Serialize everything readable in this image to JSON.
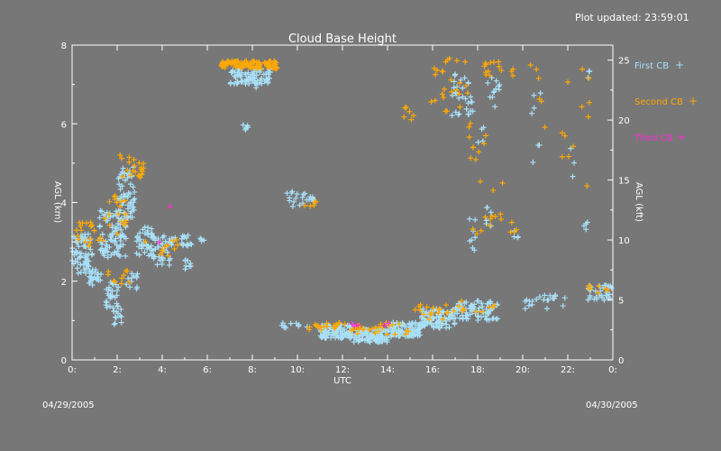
{
  "updated_text": "Plot updated: 23:59:01",
  "date_left": "04/29/2005",
  "date_right": "04/30/2005",
  "colors": {
    "background": "#777777",
    "axes": "#ffffff",
    "first_cb": "#a8e0f8",
    "second_cb": "#ffa800",
    "third_cb": "#ff2bd5"
  },
  "chart_data": {
    "type": "scatter",
    "title": "Cloud Base Height",
    "xlabel": "UTC",
    "ylabel": "AGL (km)",
    "ylabel_right": "AGL (kft)",
    "xlim": [
      0,
      24
    ],
    "ylim": [
      0,
      8
    ],
    "ylim_right": [
      0,
      26.25
    ],
    "x_ticks": [
      0,
      2,
      4,
      6,
      8,
      10,
      12,
      14,
      16,
      18,
      20,
      22,
      24
    ],
    "x_tick_labels": [
      "0:",
      "2:",
      "4:",
      "6:",
      "8:",
      "10:",
      "12:",
      "14:",
      "16:",
      "18:",
      "20:",
      "22:",
      "0:"
    ],
    "y_ticks": [
      0,
      2,
      4,
      6,
      8
    ],
    "y_tick_labels": [
      "0",
      "2",
      "4",
      "6",
      "8"
    ],
    "y_right_ticks": [
      0,
      5,
      10,
      15,
      20,
      25
    ],
    "y_right_tick_labels": [
      "0",
      "5",
      "10",
      "15",
      "20",
      "25"
    ],
    "legend_placement": "right",
    "series": [
      {
        "name": "First CB",
        "marker": "+",
        "clusters": [
          {
            "x": [
              0.0,
              0.9
            ],
            "y": [
              2.2,
              3.2
            ],
            "n": 70
          },
          {
            "x": [
              0.7,
              1.3
            ],
            "y": [
              1.9,
              2.3
            ],
            "n": 25
          },
          {
            "x": [
              1.2,
              2.4
            ],
            "y": [
              2.6,
              3.8
            ],
            "n": 90
          },
          {
            "x": [
              1.5,
              2.1
            ],
            "y": [
              1.3,
              2.0
            ],
            "n": 30
          },
          {
            "x": [
              1.8,
              2.2
            ],
            "y": [
              0.9,
              1.3
            ],
            "n": 12
          },
          {
            "x": [
              2.0,
              2.8
            ],
            "y": [
              3.6,
              4.9
            ],
            "n": 60
          },
          {
            "x": [
              2.4,
              2.9
            ],
            "y": [
              1.8,
              2.2
            ],
            "n": 12
          },
          {
            "x": [
              2.8,
              3.6
            ],
            "y": [
              2.6,
              3.4
            ],
            "n": 40
          },
          {
            "x": [
              3.6,
              4.4
            ],
            "y": [
              2.4,
              3.2
            ],
            "n": 35
          },
          {
            "x": [
              4.4,
              5.4
            ],
            "y": [
              2.9,
              3.2
            ],
            "n": 20
          },
          {
            "x": [
              5.0,
              5.3
            ],
            "y": [
              2.3,
              2.6
            ],
            "n": 8
          },
          {
            "x": [
              5.6,
              5.9
            ],
            "y": [
              3.0,
              3.1
            ],
            "n": 4
          },
          {
            "x": [
              7.0,
              8.8
            ],
            "y": [
              7.0,
              7.4
            ],
            "n": 70
          },
          {
            "x": [
              7.5,
              8.5
            ],
            "y": [
              6.9,
              7.2
            ],
            "n": 14
          },
          {
            "x": [
              7.4,
              8.0
            ],
            "y": [
              5.8,
              6.0
            ],
            "n": 6
          },
          {
            "x": [
              9.5,
              10.8
            ],
            "y": [
              3.9,
              4.3
            ],
            "n": 22
          },
          {
            "x": [
              9.3,
              11.0
            ],
            "y": [
              0.8,
              0.95
            ],
            "n": 10
          },
          {
            "x": [
              11.0,
              12.5
            ],
            "y": [
              0.55,
              0.9
            ],
            "n": 110
          },
          {
            "x": [
              12.5,
              14.0
            ],
            "y": [
              0.45,
              0.8
            ],
            "n": 120
          },
          {
            "x": [
              14.0,
              15.5
            ],
            "y": [
              0.6,
              0.95
            ],
            "n": 110
          },
          {
            "x": [
              15.5,
              17.0
            ],
            "y": [
              0.8,
              1.3
            ],
            "n": 100
          },
          {
            "x": [
              17.0,
              18.9
            ],
            "y": [
              1.0,
              1.5
            ],
            "n": 80
          },
          {
            "x": [
              20.0,
              21.9
            ],
            "y": [
              1.3,
              1.65
            ],
            "n": 22
          },
          {
            "x": [
              22.9,
              24.0
            ],
            "y": [
              1.5,
              1.9
            ],
            "n": 35
          },
          {
            "x": [
              16.8,
              17.8
            ],
            "y": [
              6.2,
              7.3
            ],
            "n": 30
          },
          {
            "x": [
              17.6,
              17.9
            ],
            "y": [
              2.7,
              3.6
            ],
            "n": 8
          },
          {
            "x": [
              18.0,
              18.3
            ],
            "y": [
              5.5,
              6.0
            ],
            "n": 4
          },
          {
            "x": [
              18.4,
              19.0
            ],
            "y": [
              6.4,
              7.2
            ],
            "n": 12
          },
          {
            "x": [
              18.3,
              18.6
            ],
            "y": [
              3.4,
              4.0
            ],
            "n": 6
          },
          {
            "x": [
              19.6,
              19.8
            ],
            "y": [
              3.1,
              3.3
            ],
            "n": 4
          },
          {
            "x": [
              20.4,
              20.8
            ],
            "y": [
              4.8,
              6.8
            ],
            "n": 7
          },
          {
            "x": [
              22.0,
              22.3
            ],
            "y": [
              4.5,
              5.5
            ],
            "n": 3
          },
          {
            "x": [
              22.7,
              22.9
            ],
            "y": [
              3.3,
              3.5
            ],
            "n": 4
          },
          {
            "x": [
              22.8,
              23.0
            ],
            "y": [
              7.1,
              7.4
            ],
            "n": 3
          }
        ]
      },
      {
        "name": "Second CB",
        "marker": "+",
        "clusters": [
          {
            "x": [
              0.1,
              1.5
            ],
            "y": [
              2.8,
              3.5
            ],
            "n": 20
          },
          {
            "x": [
              1.4,
              2.4
            ],
            "y": [
              3.2,
              4.2
            ],
            "n": 20
          },
          {
            "x": [
              2.1,
              3.2
            ],
            "y": [
              4.6,
              5.3
            ],
            "n": 22
          },
          {
            "x": [
              1.5,
              2.6
            ],
            "y": [
              1.9,
              2.3
            ],
            "n": 10
          },
          {
            "x": [
              3.2,
              4.8
            ],
            "y": [
              2.6,
              3.1
            ],
            "n": 12
          },
          {
            "x": [
              6.6,
              9.1
            ],
            "y": [
              7.4,
              7.6
            ],
            "n": 120
          },
          {
            "x": [
              9.8,
              11.0
            ],
            "y": [
              3.9,
              4.1
            ],
            "n": 5
          },
          {
            "x": [
              10.5,
              12.5
            ],
            "y": [
              0.75,
              0.95
            ],
            "n": 25
          },
          {
            "x": [
              12.5,
              15.0
            ],
            "y": [
              0.65,
              0.95
            ],
            "n": 25
          },
          {
            "x": [
              15.0,
              17.5
            ],
            "y": [
              1.0,
              1.4
            ],
            "n": 20
          },
          {
            "x": [
              17.0,
              18.8
            ],
            "y": [
              1.2,
              1.6
            ],
            "n": 8
          },
          {
            "x": [
              14.4,
              15.5
            ],
            "y": [
              6.1,
              6.5
            ],
            "n": 6
          },
          {
            "x": [
              15.5,
              17.6
            ],
            "y": [
              6.3,
              7.7
            ],
            "n": 25
          },
          {
            "x": [
              17.6,
              18.4
            ],
            "y": [
              2.9,
              6.2
            ],
            "n": 15
          },
          {
            "x": [
              18.3,
              19.7
            ],
            "y": [
              7.2,
              7.6
            ],
            "n": 15
          },
          {
            "x": [
              18.5,
              19.2
            ],
            "y": [
              3.4,
              4.5
            ],
            "n": 8
          },
          {
            "x": [
              19.4,
              19.8
            ],
            "y": [
              3.2,
              3.5
            ],
            "n": 4
          },
          {
            "x": [
              20.2,
              21.0
            ],
            "y": [
              5.5,
              7.6
            ],
            "n": 6
          },
          {
            "x": [
              21.7,
              22.3
            ],
            "y": [
              4.8,
              7.6
            ],
            "n": 6
          },
          {
            "x": [
              22.5,
              23.0
            ],
            "y": [
              3.5,
              7.6
            ],
            "n": 6
          },
          {
            "x": [
              22.8,
              23.8
            ],
            "y": [
              1.7,
              1.9
            ],
            "n": 8
          }
        ]
      },
      {
        "name": "Third CB",
        "marker": "+",
        "clusters": [
          {
            "x": [
              4.3,
              4.6
            ],
            "y": [
              3.8,
              3.9
            ],
            "n": 1
          },
          {
            "x": [
              3.8,
              4.0
            ],
            "y": [
              2.9,
              3.0
            ],
            "n": 1
          },
          {
            "x": [
              12.4,
              12.8
            ],
            "y": [
              0.85,
              0.95
            ],
            "n": 3
          },
          {
            "x": [
              13.8,
              14.2
            ],
            "y": [
              0.85,
              0.95
            ],
            "n": 2
          }
        ]
      }
    ]
  }
}
